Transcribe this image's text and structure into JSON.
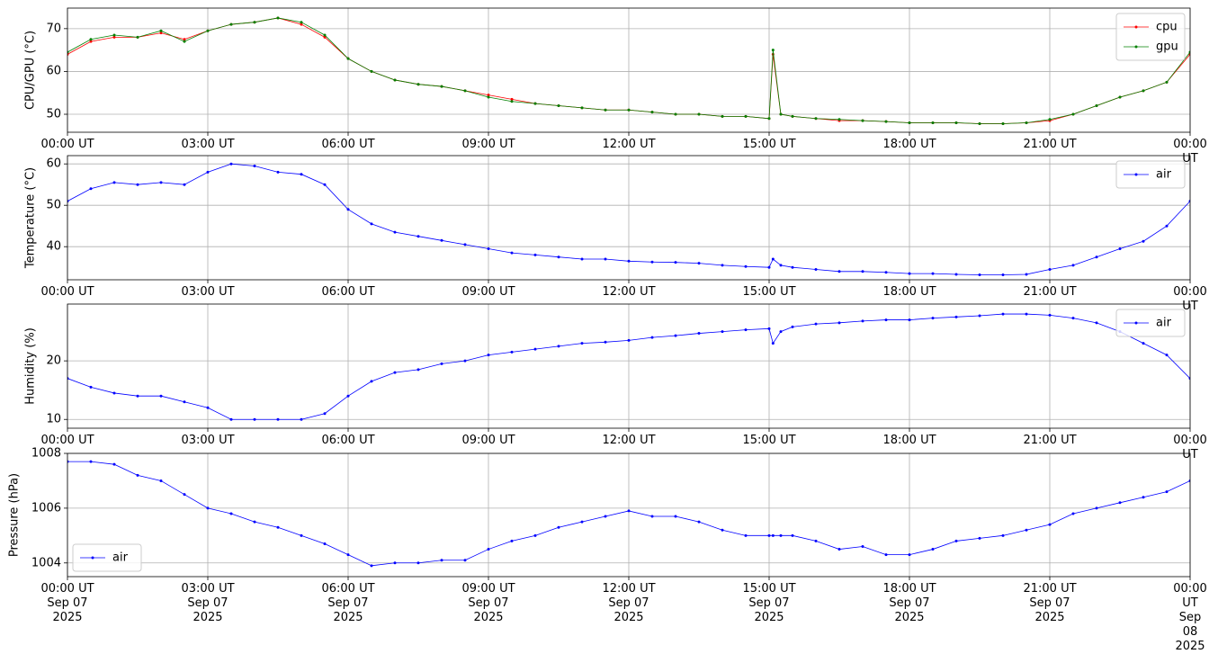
{
  "chart_data": [
    {
      "type": "line",
      "ylabel": "CPU/GPU (°C)",
      "x": [
        "2025-09-07T00:00",
        "2025-09-07T00:30",
        "2025-09-07T01:00",
        "2025-09-07T01:30",
        "2025-09-07T02:00",
        "2025-09-07T02:30",
        "2025-09-07T03:00",
        "2025-09-07T03:30",
        "2025-09-07T04:00",
        "2025-09-07T04:30",
        "2025-09-07T05:00",
        "2025-09-07T05:30",
        "2025-09-07T06:00",
        "2025-09-07T06:30",
        "2025-09-07T07:00",
        "2025-09-07T07:30",
        "2025-09-07T08:00",
        "2025-09-07T08:30",
        "2025-09-07T09:00",
        "2025-09-07T09:30",
        "2025-09-07T10:00",
        "2025-09-07T10:30",
        "2025-09-07T11:00",
        "2025-09-07T11:30",
        "2025-09-07T12:00",
        "2025-09-07T12:30",
        "2025-09-07T13:00",
        "2025-09-07T13:30",
        "2025-09-07T14:00",
        "2025-09-07T14:30",
        "2025-09-07T15:00",
        "2025-09-07T15:05",
        "2025-09-07T15:15",
        "2025-09-07T15:30",
        "2025-09-07T16:00",
        "2025-09-07T16:30",
        "2025-09-07T17:00",
        "2025-09-07T17:30",
        "2025-09-07T18:00",
        "2025-09-07T18:30",
        "2025-09-07T19:00",
        "2025-09-07T19:30",
        "2025-09-07T20:00",
        "2025-09-07T20:30",
        "2025-09-07T21:00",
        "2025-09-07T21:30",
        "2025-09-07T22:00",
        "2025-09-07T22:30",
        "2025-09-07T23:00",
        "2025-09-07T23:30",
        "2025-09-08T00:00"
      ],
      "series": [
        {
          "name": "cpu",
          "color": "#ff0000",
          "values": [
            64,
            67,
            68,
            68,
            69,
            67.5,
            69.5,
            71,
            71.5,
            72.5,
            71,
            68,
            63,
            60,
            58,
            57,
            56.5,
            55.5,
            54.5,
            53.5,
            52.5,
            52,
            51.5,
            51,
            51,
            50.5,
            50,
            50,
            49.5,
            49.5,
            49,
            64,
            50,
            49.5,
            49,
            48.5,
            48.5,
            48.3,
            48,
            48,
            48,
            47.8,
            47.8,
            48,
            48.5,
            50,
            52,
            54,
            55.5,
            57.5,
            64
          ]
        },
        {
          "name": "gpu",
          "color": "#008000",
          "values": [
            64.5,
            67.5,
            68.5,
            68,
            69.5,
            67,
            69.5,
            71,
            71.5,
            72.5,
            71.5,
            68.5,
            63,
            60,
            58,
            57,
            56.5,
            55.5,
            54,
            53,
            52.5,
            52,
            51.5,
            51,
            51,
            50.5,
            50,
            50,
            49.5,
            49.5,
            49,
            65,
            50,
            49.5,
            49,
            48.8,
            48.5,
            48.3,
            48,
            48,
            48,
            47.8,
            47.8,
            48,
            48.8,
            50,
            52,
            54,
            55.5,
            57.5,
            64.5
          ]
        }
      ],
      "xlim": [
        "2025-09-07T00:00",
        "2025-09-08T00:00"
      ],
      "xticks": [
        {
          "value": "2025-09-07T00:00",
          "label": "00:00 UT"
        },
        {
          "value": "2025-09-07T03:00",
          "label": "03:00 UT"
        },
        {
          "value": "2025-09-07T06:00",
          "label": "06:00 UT"
        },
        {
          "value": "2025-09-07T09:00",
          "label": "09:00 UT"
        },
        {
          "value": "2025-09-07T12:00",
          "label": "12:00 UT"
        },
        {
          "value": "2025-09-07T15:00",
          "label": "15:00 UT"
        },
        {
          "value": "2025-09-07T18:00",
          "label": "18:00 UT"
        },
        {
          "value": "2025-09-07T21:00",
          "label": "21:00 UT"
        },
        {
          "value": "2025-09-08T00:00",
          "label": "00:00 UT"
        }
      ],
      "ylim": [
        45.8,
        74.8
      ],
      "yticks": [
        50,
        60,
        70
      ],
      "grid": true,
      "legend": "upper right"
    },
    {
      "type": "line",
      "ylabel": "Temperature (°C)",
      "x": [
        "2025-09-07T00:00",
        "2025-09-07T00:30",
        "2025-09-07T01:00",
        "2025-09-07T01:30",
        "2025-09-07T02:00",
        "2025-09-07T02:30",
        "2025-09-07T03:00",
        "2025-09-07T03:30",
        "2025-09-07T04:00",
        "2025-09-07T04:30",
        "2025-09-07T05:00",
        "2025-09-07T05:30",
        "2025-09-07T06:00",
        "2025-09-07T06:30",
        "2025-09-07T07:00",
        "2025-09-07T07:30",
        "2025-09-07T08:00",
        "2025-09-07T08:30",
        "2025-09-07T09:00",
        "2025-09-07T09:30",
        "2025-09-07T10:00",
        "2025-09-07T10:30",
        "2025-09-07T11:00",
        "2025-09-07T11:30",
        "2025-09-07T12:00",
        "2025-09-07T12:30",
        "2025-09-07T13:00",
        "2025-09-07T13:30",
        "2025-09-07T14:00",
        "2025-09-07T14:30",
        "2025-09-07T15:00",
        "2025-09-07T15:05",
        "2025-09-07T15:15",
        "2025-09-07T15:30",
        "2025-09-07T16:00",
        "2025-09-07T16:30",
        "2025-09-07T17:00",
        "2025-09-07T17:30",
        "2025-09-07T18:00",
        "2025-09-07T18:30",
        "2025-09-07T19:00",
        "2025-09-07T19:30",
        "2025-09-07T20:00",
        "2025-09-07T20:30",
        "2025-09-07T21:00",
        "2025-09-07T21:30",
        "2025-09-07T22:00",
        "2025-09-07T22:30",
        "2025-09-07T23:00",
        "2025-09-07T23:30",
        "2025-09-08T00:00"
      ],
      "series": [
        {
          "name": "air",
          "color": "#0000ff",
          "values": [
            51,
            54,
            55.5,
            55,
            55.5,
            55,
            58,
            60,
            59.5,
            58,
            57.5,
            55,
            49,
            45.5,
            43.5,
            42.5,
            41.5,
            40.5,
            39.5,
            38.5,
            38,
            37.5,
            37,
            37,
            36.5,
            36.3,
            36.2,
            36,
            35.5,
            35.2,
            35,
            37,
            35.5,
            35,
            34.5,
            34,
            34,
            33.8,
            33.5,
            33.5,
            33.3,
            33.2,
            33.2,
            33.3,
            34.5,
            35.5,
            37.5,
            39.5,
            41.3,
            45,
            51
          ]
        }
      ],
      "xlim": [
        "2025-09-07T00:00",
        "2025-09-08T00:00"
      ],
      "xticks": [
        {
          "value": "2025-09-07T00:00",
          "label": "00:00 UT"
        },
        {
          "value": "2025-09-07T03:00",
          "label": "03:00 UT"
        },
        {
          "value": "2025-09-07T06:00",
          "label": "06:00 UT"
        },
        {
          "value": "2025-09-07T09:00",
          "label": "09:00 UT"
        },
        {
          "value": "2025-09-07T12:00",
          "label": "12:00 UT"
        },
        {
          "value": "2025-09-07T15:00",
          "label": "15:00 UT"
        },
        {
          "value": "2025-09-07T18:00",
          "label": "18:00 UT"
        },
        {
          "value": "2025-09-07T21:00",
          "label": "21:00 UT"
        },
        {
          "value": "2025-09-08T00:00",
          "label": "00:00 UT"
        }
      ],
      "ylim": [
        32,
        62
      ],
      "yticks": [
        40,
        50,
        60
      ],
      "grid": true,
      "legend": "upper right"
    },
    {
      "type": "line",
      "ylabel": "Humidity (%)",
      "x": [
        "2025-09-07T00:00",
        "2025-09-07T00:30",
        "2025-09-07T01:00",
        "2025-09-07T01:30",
        "2025-09-07T02:00",
        "2025-09-07T02:30",
        "2025-09-07T03:00",
        "2025-09-07T03:30",
        "2025-09-07T04:00",
        "2025-09-07T04:30",
        "2025-09-07T05:00",
        "2025-09-07T05:30",
        "2025-09-07T06:00",
        "2025-09-07T06:30",
        "2025-09-07T07:00",
        "2025-09-07T07:30",
        "2025-09-07T08:00",
        "2025-09-07T08:30",
        "2025-09-07T09:00",
        "2025-09-07T09:30",
        "2025-09-07T10:00",
        "2025-09-07T10:30",
        "2025-09-07T11:00",
        "2025-09-07T11:30",
        "2025-09-07T12:00",
        "2025-09-07T12:30",
        "2025-09-07T13:00",
        "2025-09-07T13:30",
        "2025-09-07T14:00",
        "2025-09-07T14:30",
        "2025-09-07T15:00",
        "2025-09-07T15:05",
        "2025-09-07T15:15",
        "2025-09-07T15:30",
        "2025-09-07T16:00",
        "2025-09-07T16:30",
        "2025-09-07T17:00",
        "2025-09-07T17:30",
        "2025-09-07T18:00",
        "2025-09-07T18:30",
        "2025-09-07T19:00",
        "2025-09-07T19:30",
        "2025-09-07T20:00",
        "2025-09-07T20:30",
        "2025-09-07T21:00",
        "2025-09-07T21:30",
        "2025-09-07T22:00",
        "2025-09-07T22:30",
        "2025-09-07T23:00",
        "2025-09-07T23:30",
        "2025-09-08T00:00"
      ],
      "series": [
        {
          "name": "air",
          "color": "#0000ff",
          "values": [
            17,
            15.5,
            14.5,
            14,
            14,
            13,
            12,
            10,
            10,
            10,
            10,
            11,
            14,
            16.5,
            18,
            18.5,
            19.5,
            20,
            21,
            21.5,
            22,
            22.5,
            23,
            23.2,
            23.5,
            24,
            24.3,
            24.7,
            25,
            25.3,
            25.5,
            23,
            25,
            25.8,
            26.3,
            26.5,
            26.8,
            27,
            27,
            27.3,
            27.5,
            27.7,
            28,
            28,
            27.8,
            27.3,
            26.5,
            25,
            23,
            21,
            17
          ]
        }
      ],
      "xlim": [
        "2025-09-07T00:00",
        "2025-09-08T00:00"
      ],
      "xticks": [
        {
          "value": "2025-09-07T00:00",
          "label": "00:00 UT"
        },
        {
          "value": "2025-09-07T03:00",
          "label": "03:00 UT"
        },
        {
          "value": "2025-09-07T06:00",
          "label": "06:00 UT"
        },
        {
          "value": "2025-09-07T09:00",
          "label": "09:00 UT"
        },
        {
          "value": "2025-09-07T12:00",
          "label": "12:00 UT"
        },
        {
          "value": "2025-09-07T15:00",
          "label": "15:00 UT"
        },
        {
          "value": "2025-09-07T18:00",
          "label": "18:00 UT"
        },
        {
          "value": "2025-09-07T21:00",
          "label": "21:00 UT"
        },
        {
          "value": "2025-09-08T00:00",
          "label": "00:00 UT"
        }
      ],
      "ylim": [
        8.5,
        29.7
      ],
      "yticks": [
        10,
        20
      ],
      "grid": true,
      "legend": "upper right"
    },
    {
      "type": "line",
      "ylabel": "Pressure (hPa)",
      "x": [
        "2025-09-07T00:00",
        "2025-09-07T00:30",
        "2025-09-07T01:00",
        "2025-09-07T01:30",
        "2025-09-07T02:00",
        "2025-09-07T02:30",
        "2025-09-07T03:00",
        "2025-09-07T03:30",
        "2025-09-07T04:00",
        "2025-09-07T04:30",
        "2025-09-07T05:00",
        "2025-09-07T05:30",
        "2025-09-07T06:00",
        "2025-09-07T06:30",
        "2025-09-07T07:00",
        "2025-09-07T07:30",
        "2025-09-07T08:00",
        "2025-09-07T08:30",
        "2025-09-07T09:00",
        "2025-09-07T09:30",
        "2025-09-07T10:00",
        "2025-09-07T10:30",
        "2025-09-07T11:00",
        "2025-09-07T11:30",
        "2025-09-07T12:00",
        "2025-09-07T12:30",
        "2025-09-07T13:00",
        "2025-09-07T13:30",
        "2025-09-07T14:00",
        "2025-09-07T14:30",
        "2025-09-07T15:00",
        "2025-09-07T15:05",
        "2025-09-07T15:15",
        "2025-09-07T15:30",
        "2025-09-07T16:00",
        "2025-09-07T16:30",
        "2025-09-07T17:00",
        "2025-09-07T17:30",
        "2025-09-07T18:00",
        "2025-09-07T18:30",
        "2025-09-07T19:00",
        "2025-09-07T19:30",
        "2025-09-07T20:00",
        "2025-09-07T20:30",
        "2025-09-07T21:00",
        "2025-09-07T21:30",
        "2025-09-07T22:00",
        "2025-09-07T22:30",
        "2025-09-07T23:00",
        "2025-09-07T23:30",
        "2025-09-08T00:00"
      ],
      "series": [
        {
          "name": "air",
          "color": "#0000ff",
          "values": [
            1007.7,
            1007.7,
            1007.6,
            1007.2,
            1007,
            1006.5,
            1006,
            1005.8,
            1005.5,
            1005.3,
            1005,
            1004.7,
            1004.3,
            1003.9,
            1004,
            1004,
            1004.1,
            1004.1,
            1004.5,
            1004.8,
            1005,
            1005.3,
            1005.5,
            1005.7,
            1005.9,
            1005.7,
            1005.7,
            1005.5,
            1005.2,
            1005,
            1005,
            1005,
            1005,
            1005,
            1004.8,
            1004.5,
            1004.6,
            1004.3,
            1004.3,
            1004.5,
            1004.8,
            1004.9,
            1005,
            1005.2,
            1005.4,
            1005.8,
            1006,
            1006.2,
            1006.4,
            1006.6,
            1007
          ]
        }
      ],
      "xlim": [
        "2025-09-07T00:00",
        "2025-09-08T00:00"
      ],
      "xticks": [
        {
          "value": "2025-09-07T00:00",
          "label": "00:00 UT\nSep 07\n2025"
        },
        {
          "value": "2025-09-07T03:00",
          "label": "03:00 UT\nSep 07\n2025"
        },
        {
          "value": "2025-09-07T06:00",
          "label": "06:00 UT\nSep 07\n2025"
        },
        {
          "value": "2025-09-07T09:00",
          "label": "09:00 UT\nSep 07\n2025"
        },
        {
          "value": "2025-09-07T12:00",
          "label": "12:00 UT\nSep 07\n2025"
        },
        {
          "value": "2025-09-07T15:00",
          "label": "15:00 UT\nSep 07\n2025"
        },
        {
          "value": "2025-09-07T18:00",
          "label": "18:00 UT\nSep 07\n2025"
        },
        {
          "value": "2025-09-07T21:00",
          "label": "21:00 UT\nSep 07\n2025"
        },
        {
          "value": "2025-09-08T00:00",
          "label": "00:00 UT\nSep 08\n2025"
        }
      ],
      "ylim": [
        1003.5,
        1008
      ],
      "yticks": [
        1004,
        1006,
        1008
      ],
      "grid": true,
      "legend": "lower left"
    }
  ]
}
